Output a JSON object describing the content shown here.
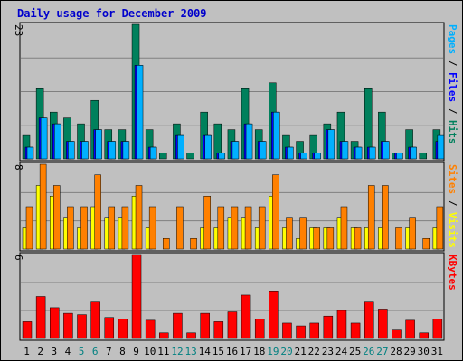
{
  "chart_data": {
    "type": "bar",
    "title": "Daily usage for December 2009",
    "categories": [
      "1",
      "2",
      "3",
      "4",
      "5",
      "6",
      "7",
      "8",
      "9",
      "10",
      "11",
      "12",
      "13",
      "14",
      "15",
      "16",
      "17",
      "18",
      "19",
      "20",
      "21",
      "22",
      "23",
      "24",
      "25",
      "26",
      "27",
      "28",
      "29",
      "30",
      "31"
    ],
    "weekend_days": [
      "5",
      "6",
      "12",
      "13",
      "19",
      "20",
      "26",
      "27"
    ],
    "colors": {
      "title": "#0000cc",
      "weekend_tick": "#008080",
      "weekday_tick": "#000000",
      "hits": "#00805c",
      "files": "#0000ff",
      "pages": "#00b0ff",
      "visits": "#ffff00",
      "sites": "#ff8000",
      "kbytes": "#ff0000",
      "panel_bg": "#c0c0c0",
      "grid": "#808080"
    },
    "panels": [
      {
        "id": "hits-files-pages",
        "ymax_label": "23",
        "ylim": [
          0,
          23
        ],
        "legend": [
          {
            "name": "Pages",
            "color": "#00b0ff"
          },
          {
            "sep": " / "
          },
          {
            "name": "Files",
            "color": "#0000ff"
          },
          {
            "sep": " / "
          },
          {
            "name": "Hits",
            "color": "#00805c"
          }
        ],
        "series": [
          {
            "name": "Hits",
            "color": "#00805c",
            "values": [
              4,
              12,
              8,
              7,
              6,
              10,
              5,
              5,
              23,
              5,
              1,
              6,
              1,
              8,
              6,
              5,
              12,
              5,
              13,
              4,
              3,
              4,
              6,
              8,
              3,
              12,
              8,
              1,
              5,
              1,
              5
            ]
          },
          {
            "name": "Files",
            "color": "#0000ff",
            "values": [
              2,
              7,
              6,
              3,
              3,
              5,
              3,
              3,
              16,
              2,
              0,
              4,
              0,
              4,
              1,
              3,
              6,
              3,
              8,
              2,
              1,
              1,
              5,
              3,
              2,
              2,
              3,
              1,
              2,
              0,
              3
            ]
          },
          {
            "name": "Pages",
            "color": "#00b0ff",
            "values": [
              2,
              7,
              6,
              3,
              3,
              5,
              3,
              3,
              16,
              2,
              0,
              4,
              0,
              4,
              1,
              3,
              6,
              3,
              8,
              2,
              1,
              1,
              5,
              3,
              2,
              2,
              3,
              1,
              2,
              0,
              4
            ]
          }
        ]
      },
      {
        "id": "sites-visits",
        "ymax_label": "8",
        "ylim": [
          0,
          8
        ],
        "legend": [
          {
            "name": "Sites",
            "color": "#ff8000"
          },
          {
            "sep": " / "
          },
          {
            "name": "Visits",
            "color": "#ffff00"
          }
        ],
        "series": [
          {
            "name": "Visits",
            "color": "#ffff00",
            "values": [
              2,
              6,
              5,
              3,
              2,
              4,
              3,
              3,
              5,
              2,
              0,
              0,
              0,
              2,
              2,
              3,
              3,
              2,
              5,
              2,
              1,
              2,
              2,
              3,
              2,
              2,
              2,
              0,
              2,
              0,
              2
            ]
          },
          {
            "name": "Sites",
            "color": "#ff8000",
            "values": [
              4,
              8,
              6,
              4,
              4,
              7,
              4,
              4,
              6,
              4,
              1,
              4,
              1,
              5,
              4,
              4,
              4,
              4,
              7,
              3,
              3,
              2,
              2,
              4,
              2,
              6,
              6,
              2,
              3,
              1,
              4
            ]
          }
        ]
      },
      {
        "id": "kbytes",
        "ymax_label": "6",
        "ylim": [
          0,
          6
        ],
        "legend": [
          {
            "name": "KBytes",
            "color": "#ff0000"
          }
        ],
        "series": [
          {
            "name": "KBytes",
            "color": "#ff0000",
            "values": [
              1.2,
              3.0,
              2.2,
              1.8,
              1.7,
              2.6,
              1.5,
              1.4,
              6.0,
              1.3,
              0.4,
              1.8,
              0.4,
              1.8,
              1.2,
              1.9,
              3.1,
              1.4,
              3.4,
              1.1,
              0.9,
              1.1,
              1.6,
              2.0,
              1.1,
              2.6,
              2.1,
              0.6,
              1.3,
              0.4,
              1.4
            ]
          }
        ]
      }
    ]
  }
}
